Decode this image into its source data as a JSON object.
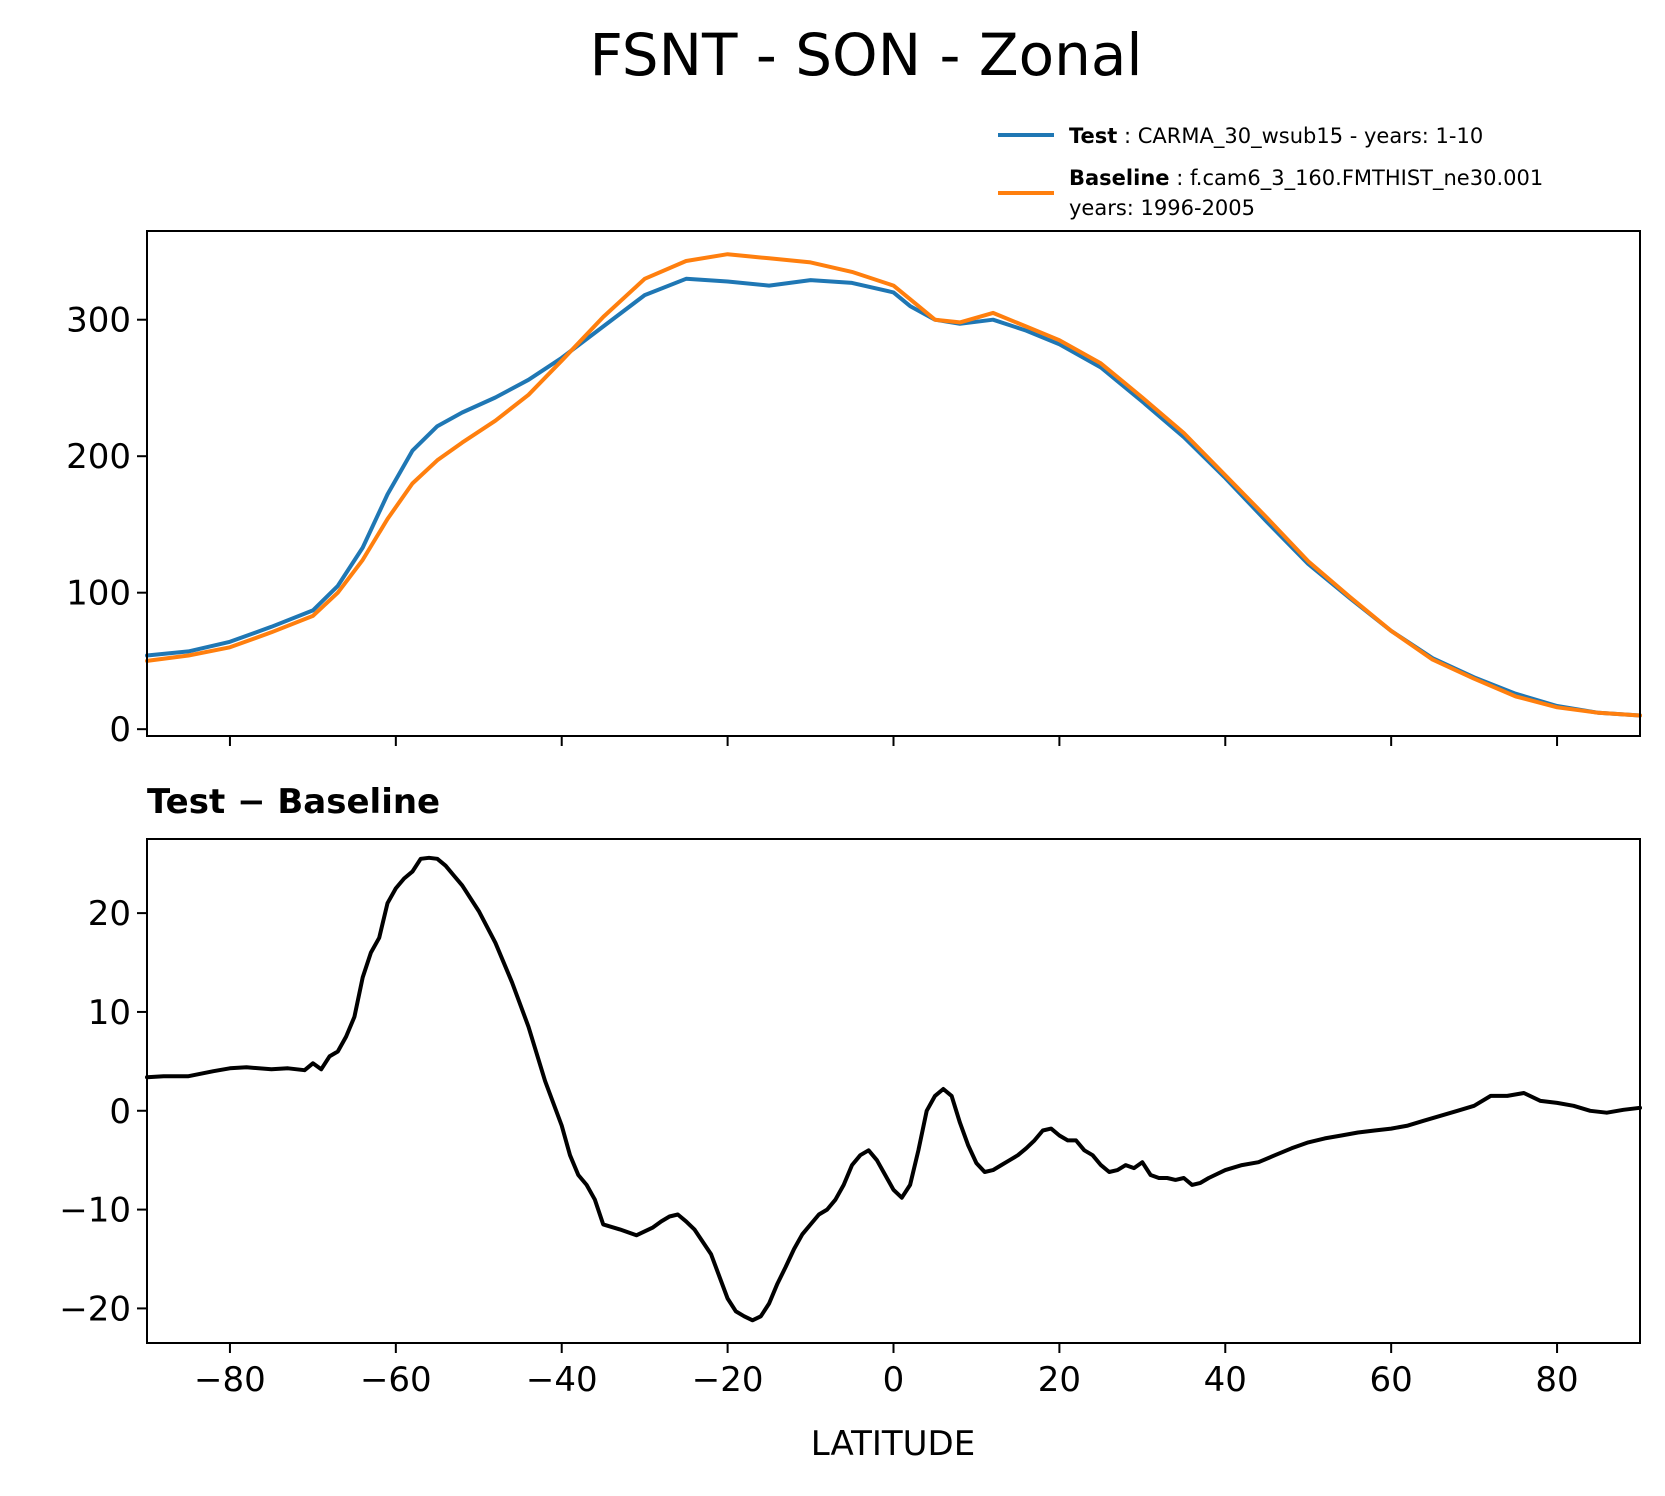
{
  "figure": {
    "title": "FSNT - SON - Zonal"
  },
  "legend": {
    "placement": "upper-right, above top panel",
    "entries": [
      {
        "key": "test",
        "label": "Test",
        "text": " : CARMA_30_wsub15 - years: 1-10",
        "text2": "",
        "color": "#1f77b4"
      },
      {
        "key": "baseline",
        "label": "Baseline",
        "text": " : f.cam6_3_160.FMTHIST_ne30.001",
        "text2": "years: 1996-2005",
        "color": "#ff7f0e"
      }
    ]
  },
  "chart_data": [
    {
      "type": "line",
      "title": "",
      "xlabel": "",
      "ylabel": "",
      "xlim": [
        -90,
        90
      ],
      "ylim": [
        -5,
        365
      ],
      "xticks": [
        -80,
        -60,
        -40,
        -20,
        0,
        20,
        40,
        60,
        80
      ],
      "yticks": [
        0,
        100,
        200,
        300
      ],
      "ytick_labels": [
        "0",
        "100",
        "200",
        "300"
      ],
      "grid": false,
      "x": [
        -90,
        -85,
        -80,
        -75,
        -70,
        -67,
        -64,
        -61,
        -58,
        -55,
        -52,
        -48,
        -44,
        -40,
        -35,
        -30,
        -25,
        -20,
        -15,
        -10,
        -5,
        0,
        2,
        5,
        8,
        12,
        16,
        20,
        25,
        30,
        35,
        40,
        45,
        50,
        55,
        60,
        65,
        70,
        75,
        80,
        85,
        90
      ],
      "series": [
        {
          "name": "Test",
          "color": "#1f77b4",
          "values": [
            54,
            57,
            64,
            75,
            87,
            105,
            133,
            172,
            204,
            222,
            232,
            243,
            256,
            272,
            295,
            318,
            330,
            328,
            325,
            329,
            327,
            320,
            310,
            300,
            297,
            300,
            292,
            282,
            265,
            240,
            214,
            184,
            152,
            121,
            96,
            72,
            52,
            38,
            26,
            17,
            12,
            10
          ]
        },
        {
          "name": "Baseline",
          "color": "#ff7f0e",
          "values": [
            50,
            54,
            60,
            71,
            83,
            100,
            124,
            154,
            180,
            197,
            210,
            226,
            245,
            270,
            302,
            330,
            343,
            348,
            345,
            342,
            335,
            325,
            315,
            300,
            298,
            305,
            295,
            285,
            268,
            243,
            217,
            186,
            155,
            123,
            97,
            72,
            51,
            37,
            24,
            16,
            12,
            10
          ]
        }
      ]
    },
    {
      "type": "line",
      "title": "Test − Baseline",
      "xlabel": "LATITUDE",
      "ylabel": "",
      "xlim": [
        -90,
        90
      ],
      "ylim": [
        -23.5,
        27.5
      ],
      "xticks": [
        -80,
        -60,
        -40,
        -20,
        0,
        20,
        40,
        60,
        80
      ],
      "xtick_labels": [
        "−80",
        "−60",
        "−40",
        "−20",
        "0",
        "20",
        "40",
        "60",
        "80"
      ],
      "yticks": [
        -20,
        -10,
        0,
        10,
        20
      ],
      "ytick_labels": [
        "−20",
        "−10",
        "0",
        "10",
        "20"
      ],
      "grid": false,
      "x": [
        -90,
        -88,
        -85,
        -82,
        -80,
        -78,
        -75,
        -73,
        -71,
        -70,
        -69,
        -68,
        -67,
        -66,
        -65,
        -64,
        -63,
        -62,
        -61,
        -60,
        -59,
        -58,
        -57,
        -56,
        -55,
        -54,
        -53,
        -52,
        -51,
        -50,
        -48,
        -46,
        -44,
        -42,
        -40,
        -39,
        -38,
        -37,
        -36,
        -35,
        -33,
        -31,
        -29,
        -28,
        -27,
        -26,
        -25,
        -24,
        -22,
        -20,
        -19,
        -18,
        -17,
        -16,
        -15,
        -14,
        -13,
        -12,
        -11,
        -10,
        -9,
        -8,
        -7,
        -6,
        -5,
        -4,
        -3,
        -2,
        -1,
        0,
        1,
        2,
        3,
        4,
        5,
        6,
        7,
        8,
        9,
        10,
        11,
        12,
        13,
        14,
        15,
        16,
        17,
        18,
        19,
        20,
        21,
        22,
        23,
        24,
        25,
        26,
        27,
        28,
        29,
        30,
        31,
        32,
        33,
        34,
        35,
        36,
        37,
        38,
        40,
        42,
        44,
        46,
        48,
        50,
        52,
        54,
        56,
        58,
        60,
        62,
        64,
        66,
        68,
        70,
        72,
        74,
        76,
        78,
        80,
        82,
        84,
        86,
        88,
        90
      ],
      "series": [
        {
          "name": "Test − Baseline",
          "color": "#000000",
          "values": [
            3.4,
            3.5,
            3.5,
            4.0,
            4.3,
            4.4,
            4.2,
            4.3,
            4.1,
            4.8,
            4.2,
            5.5,
            6.0,
            7.5,
            9.5,
            13.5,
            16.0,
            17.5,
            21.0,
            22.5,
            23.5,
            24.2,
            25.5,
            25.6,
            25.5,
            24.8,
            23.8,
            22.8,
            21.5,
            20.2,
            17.0,
            13.0,
            8.5,
            3.0,
            -1.5,
            -4.5,
            -6.5,
            -7.5,
            -9.0,
            -11.5,
            -12.0,
            -12.6,
            -11.8,
            -11.2,
            -10.7,
            -10.5,
            -11.2,
            -12.0,
            -14.5,
            -19.0,
            -20.3,
            -20.8,
            -21.2,
            -20.8,
            -19.5,
            -17.5,
            -15.8,
            -14.0,
            -12.5,
            -11.5,
            -10.5,
            -10.0,
            -9.0,
            -7.5,
            -5.5,
            -4.5,
            -4.0,
            -5.0,
            -6.5,
            -8.0,
            -8.8,
            -7.5,
            -4.0,
            0.0,
            1.5,
            2.2,
            1.5,
            -1.2,
            -3.5,
            -5.3,
            -6.2,
            -6.0,
            -5.5,
            -5.0,
            -4.5,
            -3.8,
            -3.0,
            -2.0,
            -1.8,
            -2.5,
            -3.0,
            -3.0,
            -4.0,
            -4.5,
            -5.5,
            -6.2,
            -6.0,
            -5.5,
            -5.8,
            -5.2,
            -6.5,
            -6.8,
            -6.8,
            -7.0,
            -6.8,
            -7.5,
            -7.3,
            -6.8,
            -6.0,
            -5.5,
            -5.2,
            -4.5,
            -3.8,
            -3.2,
            -2.8,
            -2.5,
            -2.2,
            -2.0,
            -1.8,
            -1.5,
            -1.0,
            -0.5,
            0.0,
            0.5,
            1.5,
            1.5,
            1.8,
            1.0,
            0.8,
            0.5,
            0.0,
            -0.2,
            0.1,
            0.3
          ]
        }
      ]
    }
  ]
}
